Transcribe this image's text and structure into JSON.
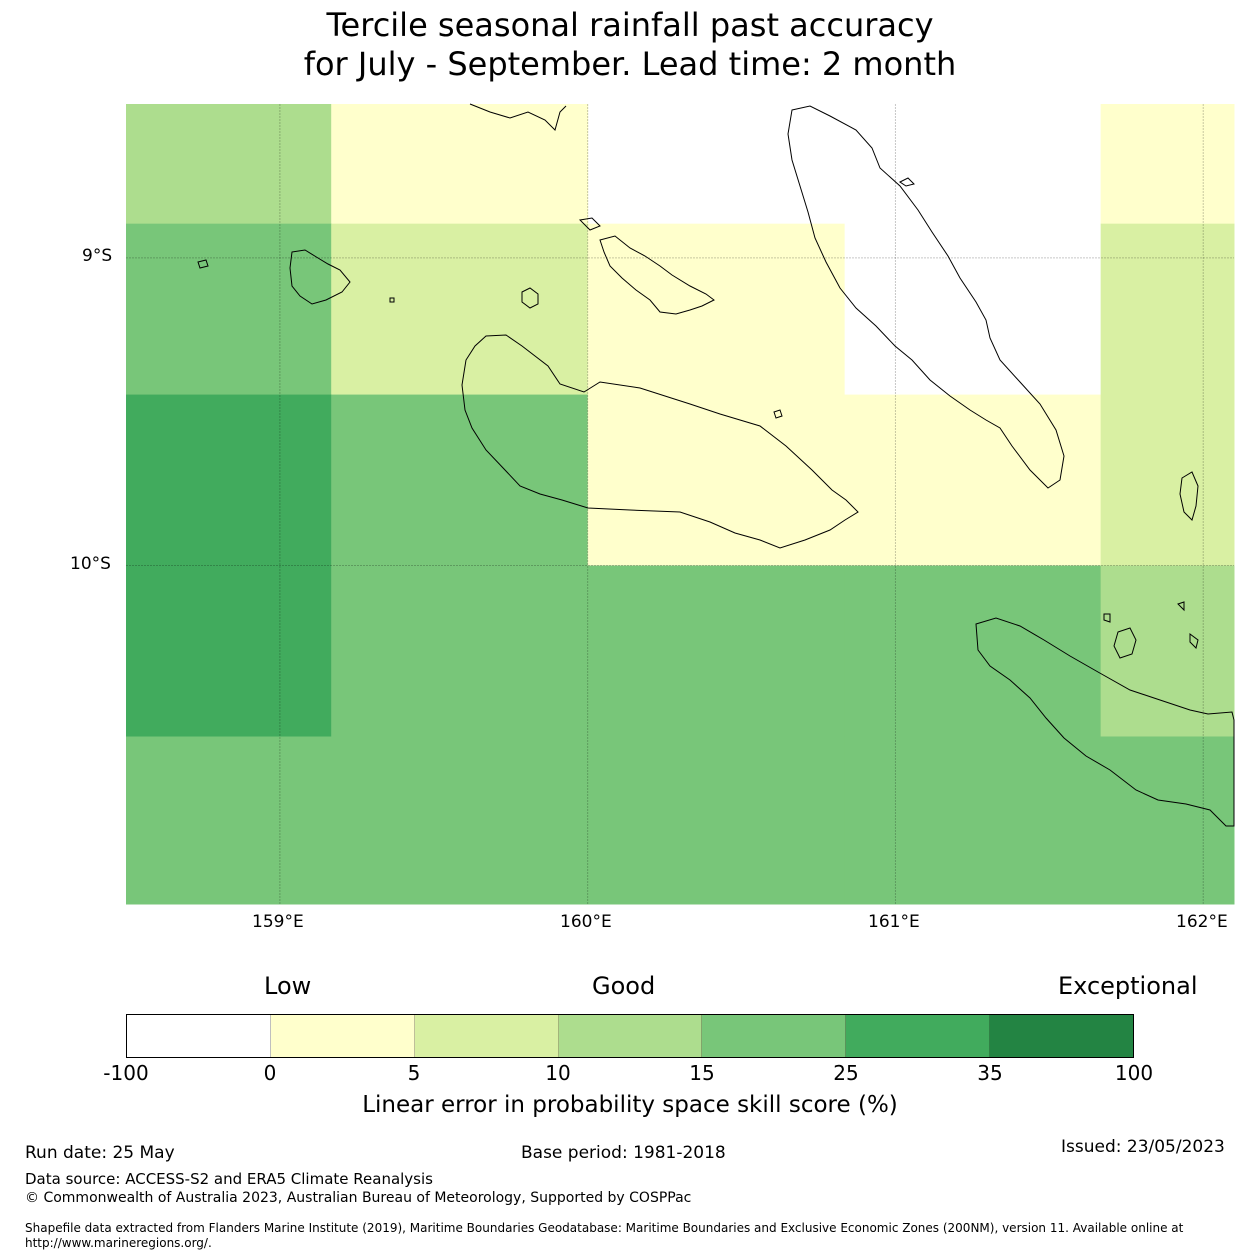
{
  "title": {
    "line1": "Tercile seasonal rainfall past accuracy",
    "line2": "for July - September. Lead time: 2 month"
  },
  "map": {
    "lon_range": [
      158.5,
      162.1
    ],
    "lat_range": [
      -11.1,
      -8.5
    ],
    "lon_ticks": [
      "159°E",
      "160°E",
      "161°E",
      "162°E"
    ],
    "lat_ticks": [
      "9°S",
      "10°S"
    ],
    "grid": true,
    "cell_lon_edges": [
      158.5,
      159.1667,
      160.0,
      160.8333,
      161.6667,
      162.1
    ],
    "cell_lat_edges": [
      -8.5,
      -8.8889,
      -9.4444,
      -10.0,
      -10.5556,
      -11.1
    ],
    "skill_category_grid": [
      [
        3,
        1,
        -1,
        -1,
        1
      ],
      [
        4,
        2,
        1,
        -1,
        2
      ],
      [
        5,
        4,
        1,
        1,
        2
      ],
      [
        5,
        4,
        4,
        4,
        3
      ],
      [
        4,
        4,
        4,
        4,
        4
      ]
    ],
    "colors": [
      "#ffffff",
      "#ffffcc",
      "#d9f0a3",
      "#addd8e",
      "#78c679",
      "#41ab5d",
      "#238443"
    ]
  },
  "legend": {
    "category_labels": [
      "Low",
      "Good",
      "Exceptional"
    ],
    "boundaries": [
      "-100",
      "0",
      "5",
      "10",
      "15",
      "25",
      "35",
      "100"
    ],
    "title": "Linear error in probability space skill score (%)"
  },
  "footer": {
    "run_date": "Run date: 25 May",
    "base_period": "Base period: 1981-2018",
    "issued": "Issued: 23/05/2023",
    "data_source": "Data source: ACCESS-S2 and ERA5 Climate Reanalysis",
    "copyright": "© Commonwealth of Australia 2023, Australian Bureau of Meteorology, Supported by COSPPac",
    "shapefile_line1": "Shapefile data extracted from Flanders Marine Institute (2019), Maritime Boundaries Geodatabase: Maritime Boundaries and Exclusive Economic Zones (200NM), version 11. Available online at",
    "shapefile_line2": "http://www.marineregions.org/."
  }
}
